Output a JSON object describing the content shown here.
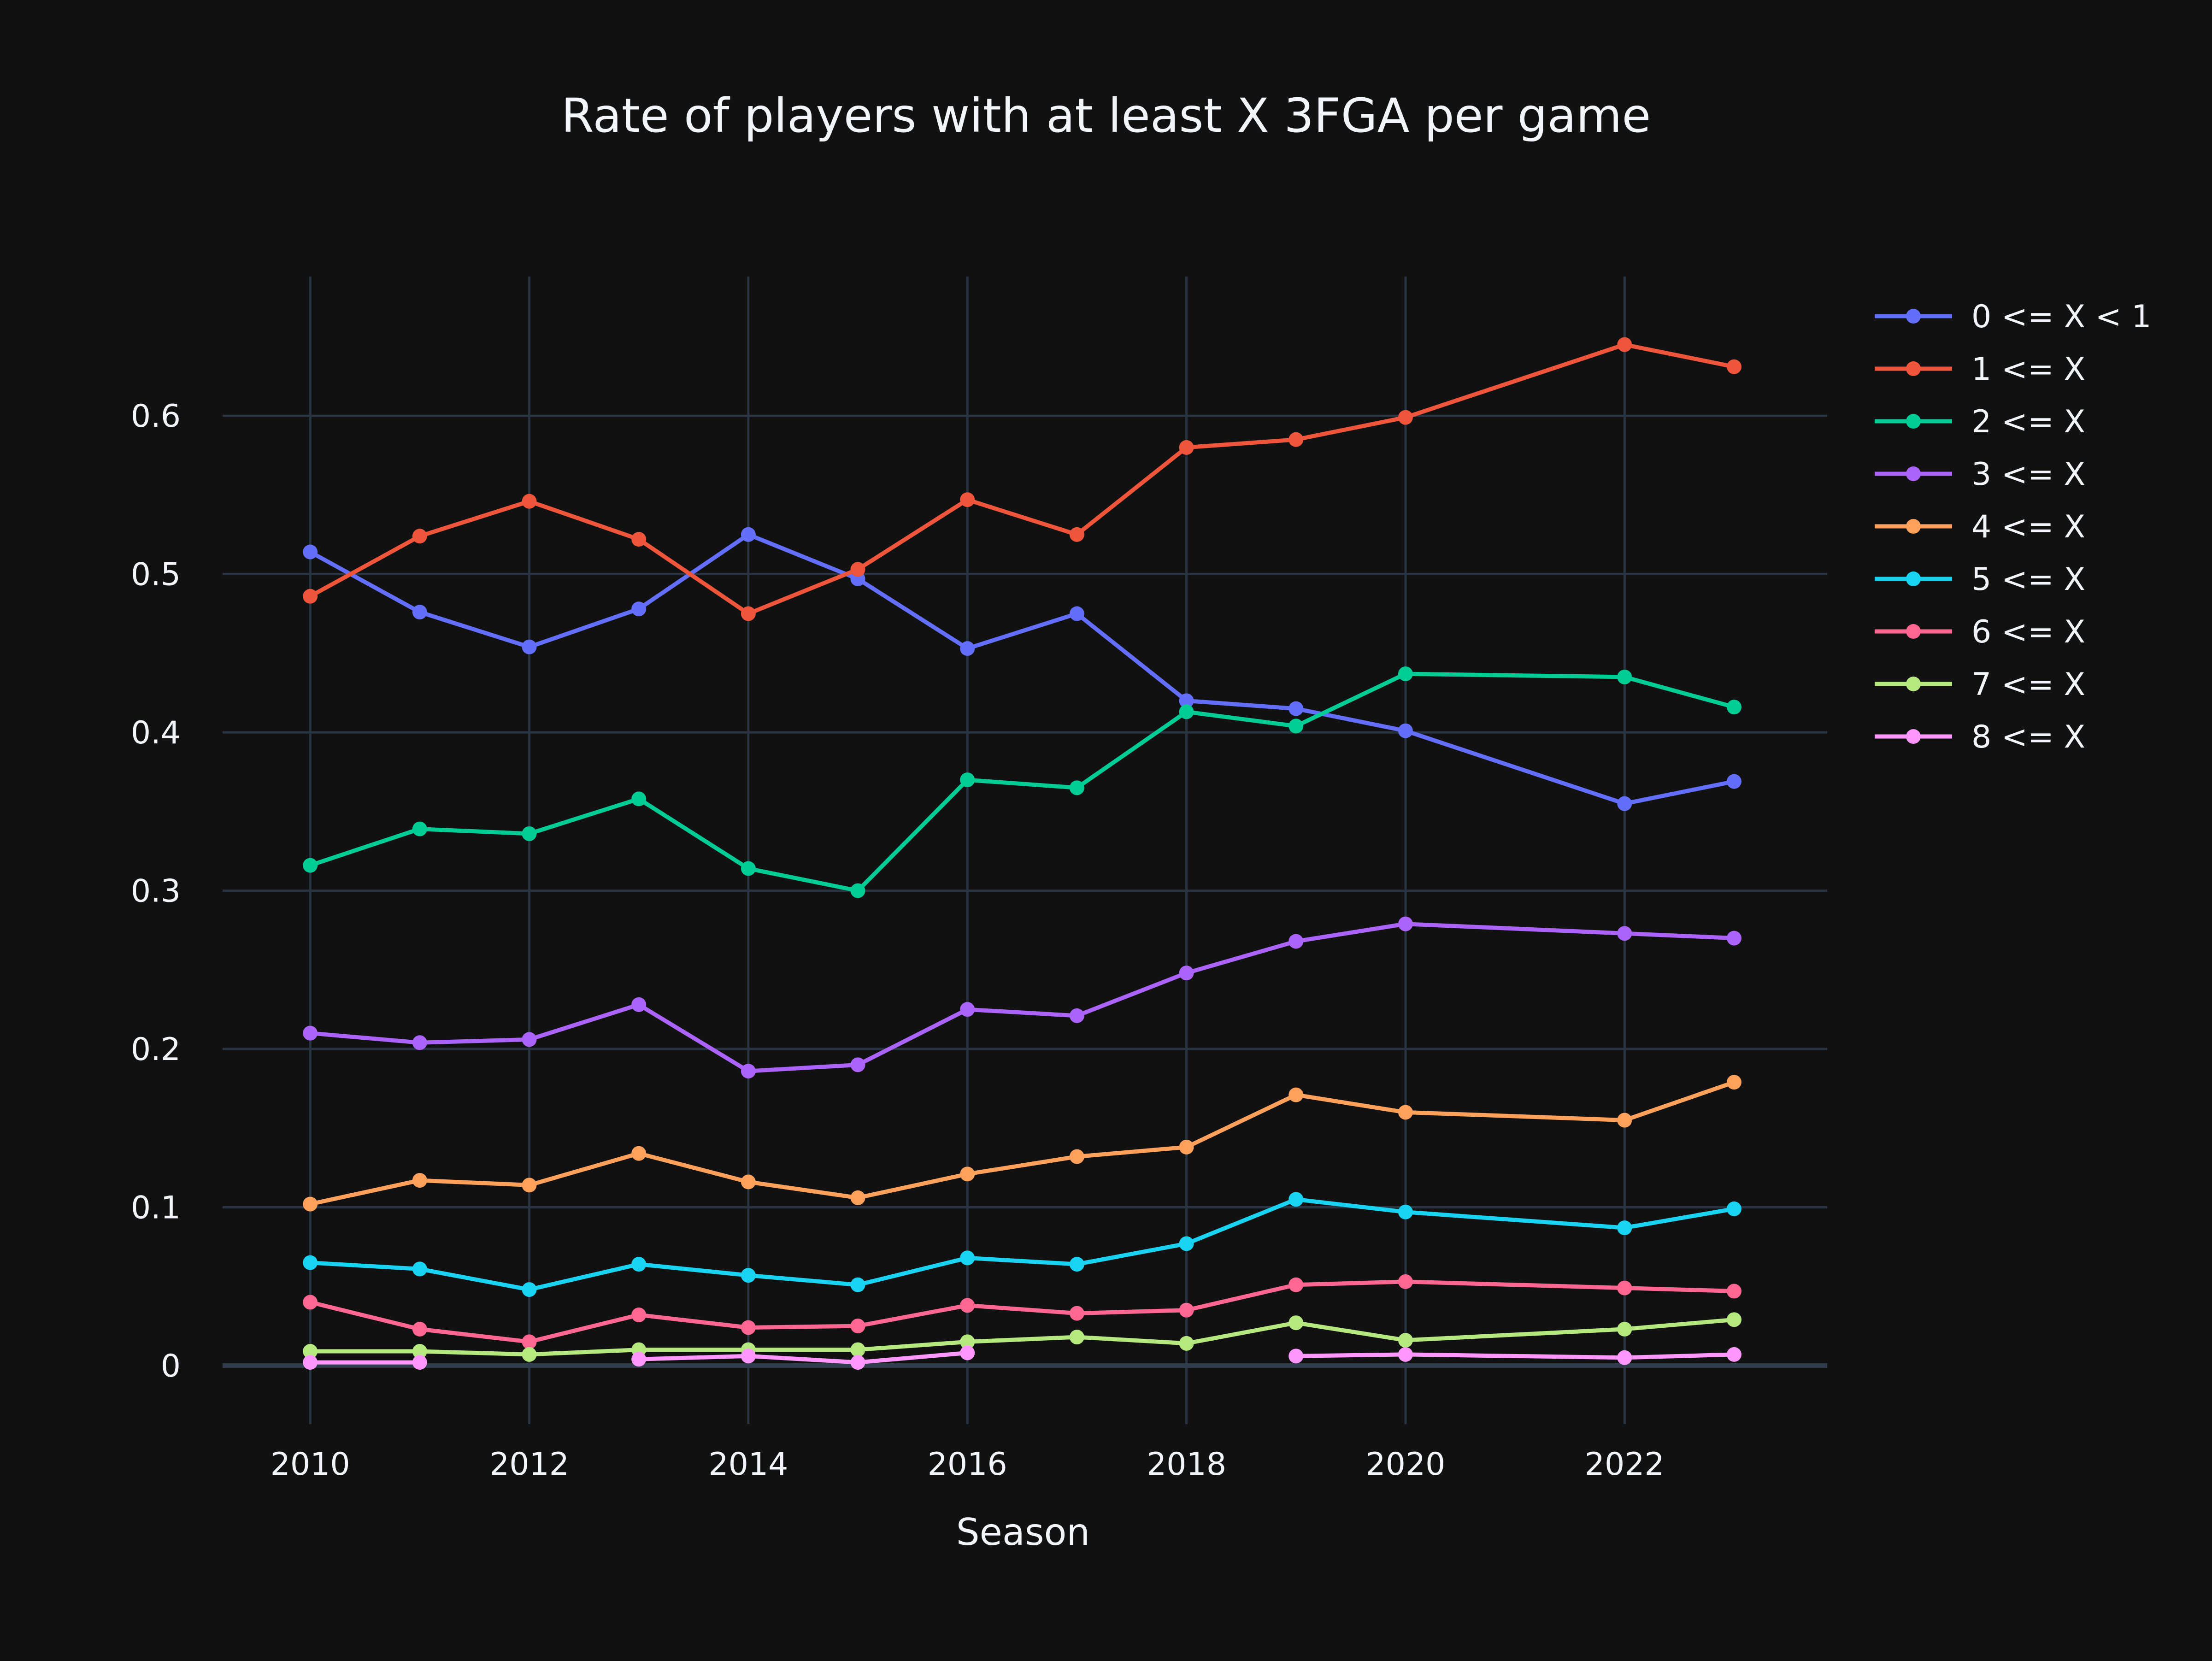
{
  "chart_data": {
    "type": "line",
    "title": "Rate of players with at least X 3FGA per game",
    "xlabel": "Season",
    "ylabel": "",
    "xlim": [
      2009.2,
      2023.85
    ],
    "ylim": [
      -0.037,
      0.688
    ],
    "xticks": [
      2010,
      2012,
      2014,
      2016,
      2018,
      2020,
      2022
    ],
    "yticks": [
      0,
      0.1,
      0.2,
      0.3,
      0.4,
      0.5,
      0.6
    ],
    "ytick_labels": [
      "0",
      "0.1",
      "0.2",
      "0.3",
      "0.4",
      "0.5",
      "0.6"
    ],
    "grid": true,
    "legend_position": "top-right",
    "background": "#111111",
    "grid_color": "#283442",
    "zero_line_color": "#2f3c4b",
    "series": [
      {
        "name": "0 <= X < 1",
        "color": "#636efa",
        "x": [
          2010,
          2011,
          2012,
          2013,
          2014,
          2015,
          2016,
          2017,
          2018,
          2019,
          2020,
          2022,
          2023
        ],
        "y": [
          0.514,
          0.476,
          0.454,
          0.478,
          0.525,
          0.497,
          0.453,
          0.475,
          0.42,
          0.415,
          0.401,
          0.355,
          0.369
        ]
      },
      {
        "name": "1 <= X",
        "color": "#EF553B",
        "x": [
          2010,
          2011,
          2012,
          2013,
          2014,
          2015,
          2016,
          2017,
          2018,
          2019,
          2020,
          2022,
          2023
        ],
        "y": [
          0.486,
          0.524,
          0.546,
          0.522,
          0.475,
          0.503,
          0.547,
          0.525,
          0.58,
          0.585,
          0.599,
          0.645,
          0.631
        ]
      },
      {
        "name": "2 <= X",
        "color": "#00cc96",
        "x": [
          2010,
          2011,
          2012,
          2013,
          2014,
          2015,
          2016,
          2017,
          2018,
          2019,
          2020,
          2022,
          2023
        ],
        "y": [
          0.316,
          0.339,
          0.336,
          0.358,
          0.314,
          0.3,
          0.37,
          0.365,
          0.413,
          0.404,
          0.437,
          0.435,
          0.416
        ]
      },
      {
        "name": "3 <= X",
        "color": "#ab63fa",
        "x": [
          2010,
          2011,
          2012,
          2013,
          2014,
          2015,
          2016,
          2017,
          2018,
          2019,
          2020,
          2022,
          2023
        ],
        "y": [
          0.21,
          0.204,
          0.206,
          0.228,
          0.186,
          0.19,
          0.225,
          0.221,
          0.248,
          0.268,
          0.279,
          0.273,
          0.27
        ]
      },
      {
        "name": "4 <= X",
        "color": "#FFA15A",
        "x": [
          2010,
          2011,
          2012,
          2013,
          2014,
          2015,
          2016,
          2017,
          2018,
          2019,
          2020,
          2022,
          2023
        ],
        "y": [
          0.102,
          0.117,
          0.114,
          0.134,
          0.116,
          0.106,
          0.121,
          0.132,
          0.138,
          0.171,
          0.16,
          0.155,
          0.179
        ]
      },
      {
        "name": "5 <= X",
        "color": "#19d3f3",
        "x": [
          2010,
          2011,
          2012,
          2013,
          2014,
          2015,
          2016,
          2017,
          2018,
          2019,
          2020,
          2022,
          2023
        ],
        "y": [
          0.065,
          0.061,
          0.048,
          0.064,
          0.057,
          0.051,
          0.068,
          0.064,
          0.077,
          0.105,
          0.097,
          0.087,
          0.099
        ]
      },
      {
        "name": "6 <= X",
        "color": "#FF6692",
        "x": [
          2010,
          2011,
          2012,
          2013,
          2014,
          2015,
          2016,
          2017,
          2018,
          2019,
          2020,
          2022,
          2023
        ],
        "y": [
          0.04,
          0.023,
          0.015,
          0.032,
          0.024,
          0.025,
          0.038,
          0.033,
          0.035,
          0.051,
          0.053,
          0.049,
          0.047
        ]
      },
      {
        "name": "7 <= X",
        "color": "#B6E880",
        "x": [
          2010,
          2011,
          2012,
          2013,
          2014,
          2015,
          2016,
          2017,
          2018,
          2019,
          2020,
          2022,
          2023
        ],
        "y": [
          0.009,
          0.009,
          0.007,
          0.01,
          0.01,
          0.01,
          0.015,
          0.018,
          0.014,
          0.027,
          0.016,
          0.023,
          0.029
        ]
      },
      {
        "name": "8 <= X",
        "color": "#FF97FF",
        "x": [
          2010,
          2011,
          2013,
          2014,
          2015,
          2016,
          2019,
          2020,
          2022,
          2023
        ],
        "y": [
          0.002,
          0.002,
          0.004,
          0.006,
          0.002,
          0.008,
          0.006,
          0.007,
          0.005,
          0.007
        ],
        "segments": [
          [
            2010,
            2011
          ],
          [
            2013,
            2016
          ],
          [
            2019,
            2023
          ]
        ]
      }
    ]
  }
}
